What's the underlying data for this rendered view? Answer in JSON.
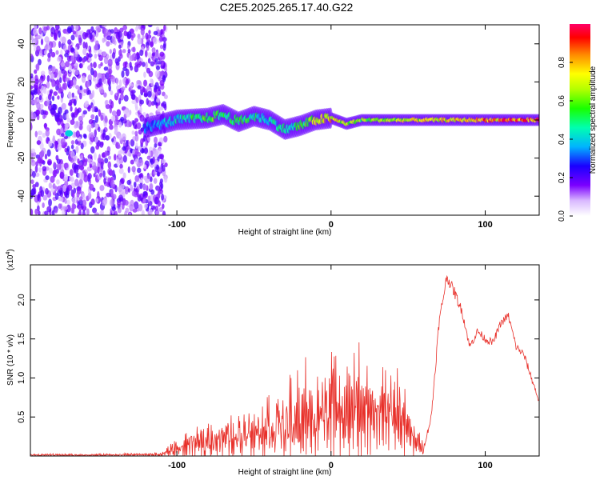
{
  "title": "C2E5.2025.265.17.40.G22",
  "chart_data": [
    {
      "type": "heatmap",
      "title": "C2E5.2025.265.17.40.G22",
      "xlabel": "Height of straight line (km)",
      "ylabel": "Frequency (Hz)",
      "xlim": [
        -195,
        135
      ],
      "ylim": [
        -50,
        50
      ],
      "xticks": [
        -100,
        0,
        100
      ],
      "yticks": [
        -40,
        -20,
        0,
        20,
        40
      ],
      "noise_region_km": [
        -195,
        -115
      ],
      "signal_track": {
        "x": [
          -120,
          -100,
          -80,
          -70,
          -60,
          -50,
          -40,
          -30,
          -20,
          -10,
          0,
          10,
          20,
          40,
          60,
          80,
          100,
          120,
          135
        ],
        "freq": [
          -4,
          0,
          1,
          3,
          -1,
          2,
          0,
          -5,
          -3,
          0,
          1,
          -2,
          0,
          0,
          0,
          0,
          0,
          0,
          0
        ],
        "amplitude": [
          0.35,
          0.45,
          0.6,
          0.55,
          0.6,
          0.5,
          0.45,
          0.5,
          0.55,
          0.7,
          0.8,
          0.7,
          0.65,
          0.7,
          0.75,
          0.8,
          0.85,
          0.9,
          0.95
        ]
      },
      "colorbar": {
        "label": "Normalized spectral amplitude",
        "range": [
          0,
          1
        ],
        "ticks": [
          "0.0",
          "0.2",
          "0.4",
          "0.6",
          "0.8"
        ]
      }
    },
    {
      "type": "line",
      "xlabel": "Height of straight line (km)",
      "ylabel": "SNR (10 * v/v)",
      "scale_label_base": "(x10",
      "scale_label_exp": "4",
      "scale_label_end": ")",
      "xlim": [
        -195,
        135
      ],
      "ylim": [
        0,
        2.45
      ],
      "xticks": [
        -100,
        0,
        100
      ],
      "yticks": [
        "0.5",
        "1.0",
        "1.5",
        "2.0"
      ],
      "color": "#e8302a",
      "envelope": {
        "x": [
          -195,
          -150,
          -110,
          -100,
          -90,
          -80,
          -70,
          -60,
          -50,
          -40,
          -30,
          -20,
          -10,
          -5,
          0,
          5,
          10,
          15,
          20,
          25,
          30,
          35,
          40,
          45,
          50,
          55,
          60,
          65,
          70,
          75,
          80,
          85,
          90,
          95,
          100,
          105,
          110,
          115,
          120,
          125,
          130,
          135
        ],
        "y": [
          0.02,
          0.02,
          0.03,
          0.15,
          0.2,
          0.3,
          0.35,
          0.4,
          0.45,
          0.55,
          0.6,
          0.7,
          0.75,
          0.85,
          1.0,
          0.95,
          0.8,
          0.9,
          1.0,
          0.7,
          0.8,
          0.9,
          0.95,
          0.75,
          0.5,
          0.3,
          0.1,
          0.5,
          1.7,
          2.3,
          2.1,
          1.85,
          1.4,
          1.6,
          1.5,
          1.45,
          1.7,
          1.8,
          1.4,
          1.3,
          1.0,
          0.7
        ],
        "noise_amplitude": [
          0.01,
          0.01,
          0.02,
          0.12,
          0.2,
          0.22,
          0.25,
          0.35,
          0.4,
          0.45,
          0.5,
          0.6,
          0.6,
          0.45,
          0.45,
          0.45,
          0.5,
          0.55,
          0.6,
          0.2,
          0.15,
          0.12,
          0.1,
          0.08,
          0.08,
          0.08,
          0.05,
          0.1,
          0.15,
          0.12,
          0.15,
          0.12,
          0.1,
          0.1,
          0.1,
          0.1,
          0.1,
          0.1,
          0.1,
          0.1,
          0.1,
          0.08
        ]
      }
    }
  ]
}
